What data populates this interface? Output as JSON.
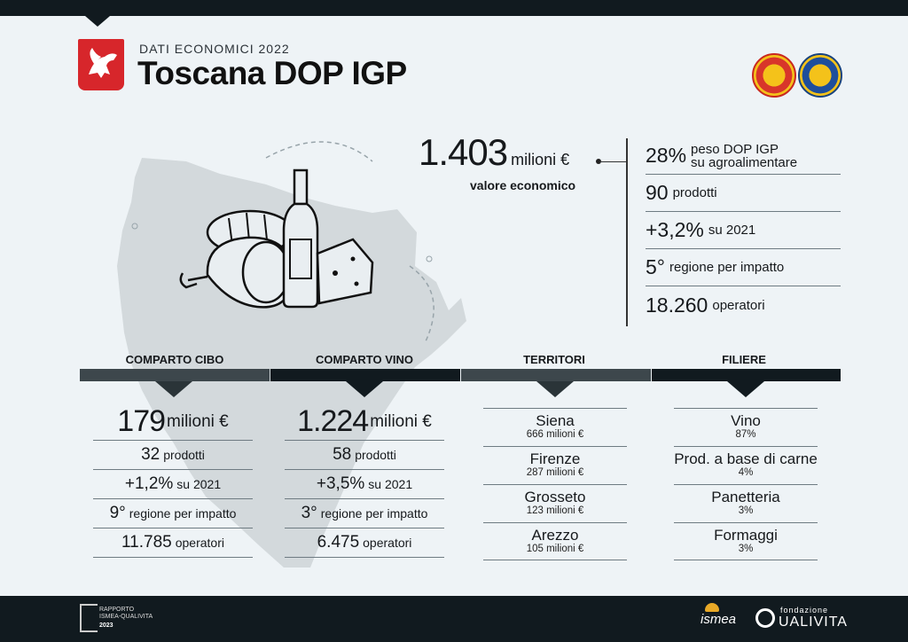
{
  "header": {
    "subtitle": "DATI ECONOMICI 2022",
    "title": "Toscana DOP IGP"
  },
  "main_value": {
    "value": "1.403",
    "unit": "milioni €",
    "label": "valore economico"
  },
  "stats": [
    {
      "num": "28%",
      "text": "peso DOP IGP",
      "text2": "su agroalimentare"
    },
    {
      "num": "90",
      "text": "prodotti"
    },
    {
      "num": "+3,2%",
      "text": "su 2021"
    },
    {
      "num": "5°",
      "text": "regione per impatto"
    },
    {
      "num": "18.260",
      "text": "operatori"
    }
  ],
  "cibo": {
    "heading": "COMPARTO CIBO",
    "value": "179",
    "unit": "milioni €",
    "rows": [
      {
        "n": "32",
        "u": "prodotti"
      },
      {
        "n": "+1,2%",
        "u": "su 2021"
      },
      {
        "n": "9°",
        "u": "regione per impatto"
      },
      {
        "n": "11.785",
        "u": "operatori"
      }
    ]
  },
  "vino": {
    "heading": "COMPARTO VINO",
    "value": "1.224",
    "unit": "milioni €",
    "rows": [
      {
        "n": "58",
        "u": "prodotti"
      },
      {
        "n": "+3,5%",
        "u": "su 2021"
      },
      {
        "n": "3°",
        "u": "regione per impatto"
      },
      {
        "n": "6.475",
        "u": "operatori"
      }
    ]
  },
  "territori": {
    "heading": "TERRITORI",
    "items": [
      {
        "name": "Siena",
        "value": "666 milioni €"
      },
      {
        "name": "Firenze",
        "value": "287 milioni €"
      },
      {
        "name": "Grosseto",
        "value": "123 milioni €"
      },
      {
        "name": "Arezzo",
        "value": "105 milioni €"
      }
    ]
  },
  "filiere": {
    "heading": "FILIERE",
    "items": [
      {
        "name": "Vino",
        "value": "87%"
      },
      {
        "name": "Prod. a base di carne",
        "value": "4%"
      },
      {
        "name": "Panetteria",
        "value": "3%"
      },
      {
        "name": "Formaggi",
        "value": "3%"
      }
    ]
  },
  "footer": {
    "rapporto": "RAPPORTO",
    "rapporto2": "ISMEA-QUALIVITA",
    "year": "2023",
    "ismea": "ismea",
    "qualivita_small": "fondazione",
    "qualivita": "UALIVITA"
  },
  "colors": {
    "background": "#eef3f6",
    "dark_bar": "#111a1f",
    "accent_red": "#d7262b",
    "map_grey": "#d3d9dc"
  }
}
